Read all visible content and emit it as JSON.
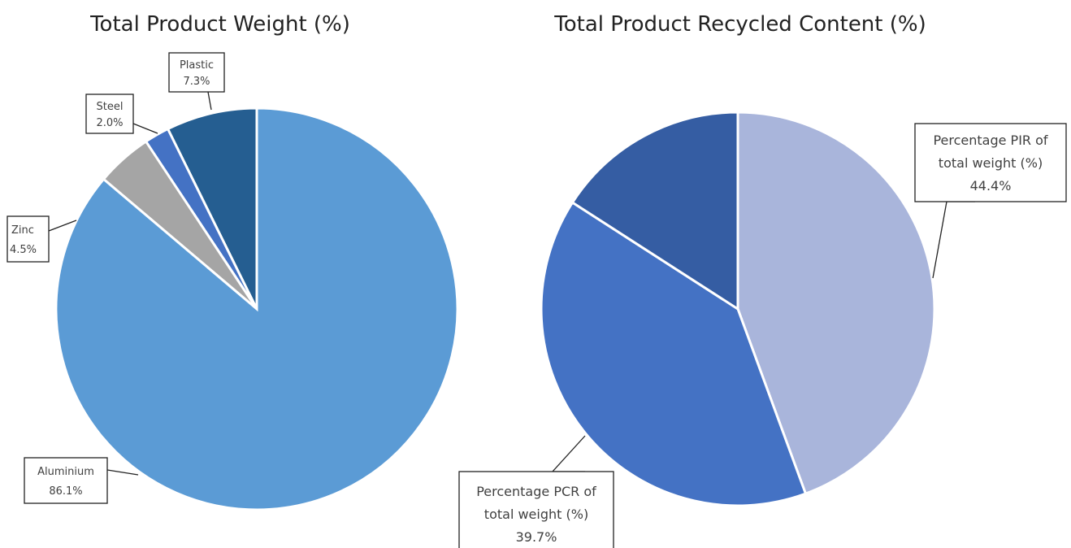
{
  "chart_data": [
    {
      "type": "pie",
      "title": "Total Product Weight (%)",
      "slices": [
        {
          "name": "Plastic",
          "value": 7.3,
          "label": "7.3%",
          "color": "#255e91"
        },
        {
          "name": "Steel",
          "value": 2.0,
          "label": "2.0%",
          "color": "#4472c4"
        },
        {
          "name": "Zinc",
          "value": 4.5,
          "label": "4.5%",
          "color": "#a5a5a5"
        },
        {
          "name": "Aluminium",
          "value": 86.1,
          "label": "86.1%",
          "color": "#5b9bd5"
        }
      ]
    },
    {
      "type": "pie",
      "title": "Total Product Recycled Content (%)",
      "slices": [
        {
          "name": "Percentage PIR of total weight (%)",
          "value": 44.4,
          "label": "44.4%",
          "color": "#a9b5db"
        },
        {
          "name": "Percentage PCR of total weight (%)",
          "value": 39.7,
          "label": "39.7%",
          "color": "#4472c4"
        },
        {
          "name": "",
          "value": 15.9,
          "label": "",
          "color": "#355da3"
        }
      ]
    }
  ],
  "labels": {
    "plastic": {
      "line1": "Plastic",
      "line2": "7.3%"
    },
    "steel": {
      "line1": "Steel",
      "line2": "2.0%"
    },
    "zinc": {
      "line1": "Zinc",
      "line2": "4.5%"
    },
    "aluminium": {
      "line1": "Aluminium",
      "line2": "86.1%"
    },
    "pir": {
      "line1": "Percentage PIR of",
      "line2": "total weight (%)",
      "line3": "44.4%"
    },
    "pcr": {
      "line1": "Percentage PCR of",
      "line2": "total weight (%)",
      "line3": "39.7%"
    }
  }
}
